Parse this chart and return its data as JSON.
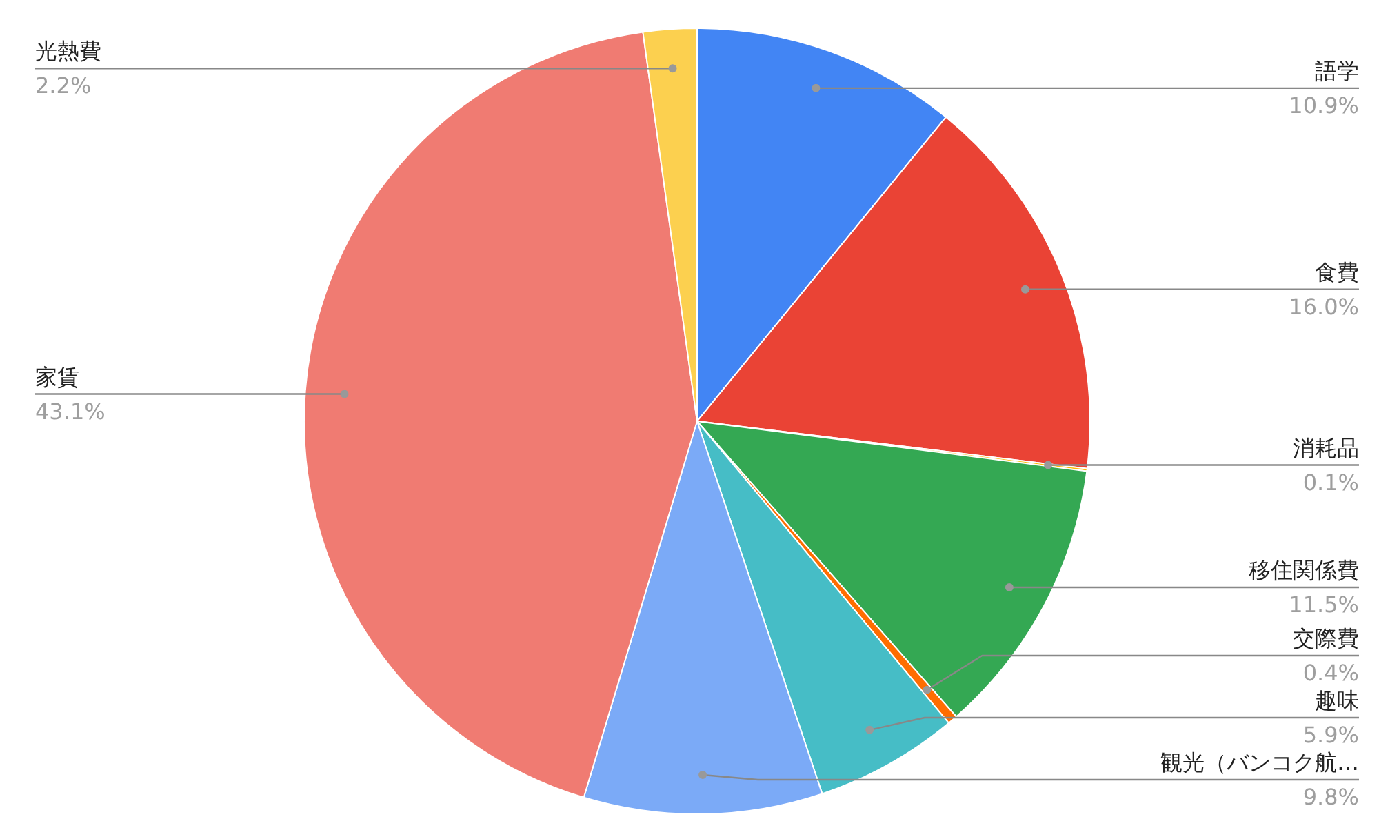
{
  "chart_data": {
    "type": "pie",
    "categories": [
      "語学",
      "食費",
      "消耗品",
      "移住関係費",
      "交際費",
      "趣味",
      "観光（バンコク航…",
      "家賃",
      "光熱費"
    ],
    "values": [
      10.9,
      16.0,
      0.1,
      11.5,
      0.4,
      5.9,
      9.8,
      43.1,
      2.2
    ],
    "colors": [
      "#4285f4",
      "#ea4335",
      "#fbbc04",
      "#34a853",
      "#ff6d01",
      "#46bdc6",
      "#7baaf7",
      "#f07b72",
      "#fcd04f"
    ],
    "value_labels": [
      "10.9%",
      "16.0%",
      "0.1%",
      "11.5%",
      "0.4%",
      "5.9%",
      "9.8%",
      "43.1%",
      "2.2%"
    ]
  }
}
